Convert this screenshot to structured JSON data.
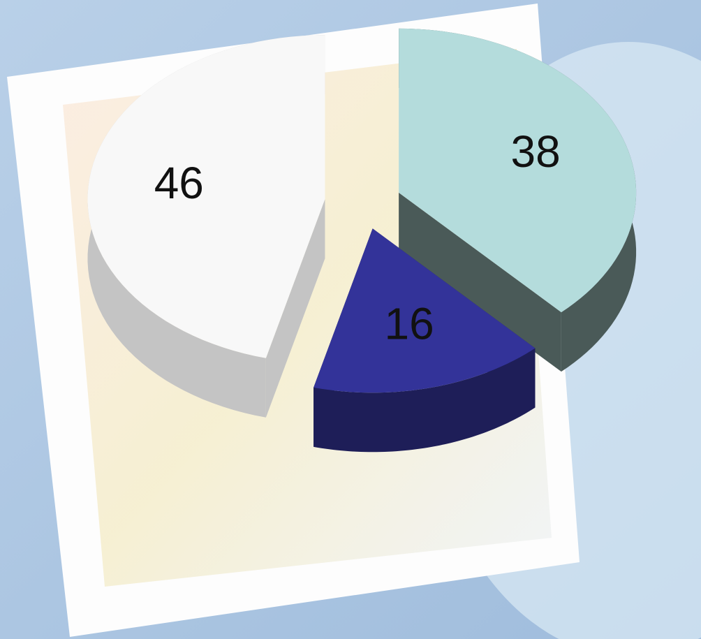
{
  "chart_data": {
    "type": "pie",
    "values": [
      38,
      16,
      46
    ],
    "colors": [
      "#b4dcdc",
      "#333399",
      "#f8f8f8"
    ],
    "side_colors": [
      "#4a5a58",
      "#1e1e58",
      "#c4c4c4"
    ]
  }
}
